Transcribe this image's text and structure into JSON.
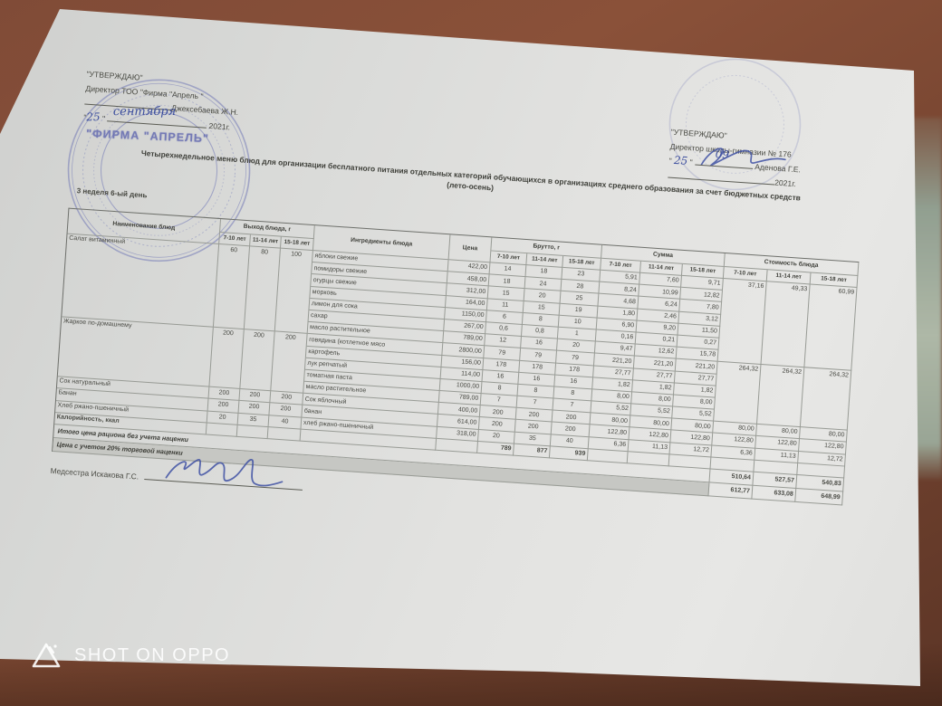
{
  "approvals": {
    "left": {
      "approve": "\"УТВЕРЖДАЮ\"",
      "position": "Директор ТОО \"Фирма \"Апрель \"",
      "name": "Джексебаева Ж.Н.",
      "day": "25",
      "month": "сентября",
      "year": "2021г.",
      "stamp_center_text": "\"ФИРМА \"АПРЕЛЬ\"",
      "stamp_color": "#5d64ae"
    },
    "right": {
      "approve": "\"УТВЕРЖДАЮ\"",
      "position": "Директор школы-гимназии  № 176",
      "name": "Аденова Г.Е.",
      "day": "25",
      "month": "09",
      "year": "2021г.",
      "signature_color": "#3f51a3"
    }
  },
  "title": {
    "line1": "Четырехнедельное меню блюд для организации бесплатного питания отдельных категорий обучающихся в организациях среднего образования за счет бюджетных средств",
    "line2": "(лето-осень)"
  },
  "week_label": "3 неделя 6-ый день",
  "table": {
    "headers": {
      "dish": "Наименование блюд",
      "portion": "Выход блюда, г",
      "ingredients": "Ингредиенты блюда",
      "price": "Цена",
      "brutto": "Брутто, г",
      "summa": "Сумма",
      "cost": "Стоимость блюда",
      "ages": [
        "7-10 лет",
        "11-14 лет",
        "15-18 лет"
      ]
    },
    "dishes": [
      {
        "name": "Салат витаминный",
        "portions": [
          "60",
          "80",
          "100"
        ],
        "cost": [
          "37,16",
          "49,33",
          "60,99"
        ],
        "ingredients": [
          {
            "name": "яблоки свежие",
            "price": "422,00",
            "brutto": [
              "14",
              "18",
              "23"
            ],
            "summa": [
              "5,91",
              "7,60",
              "9,71"
            ]
          },
          {
            "name": "помидоры свежие",
            "price": "458,00",
            "brutto": [
              "18",
              "24",
              "28"
            ],
            "summa": [
              "8,24",
              "10,99",
              "12,82"
            ]
          },
          {
            "name": "огурцы свежие",
            "price": "312,00",
            "brutto": [
              "15",
              "20",
              "25"
            ],
            "summa": [
              "4,68",
              "6,24",
              "7,80"
            ]
          },
          {
            "name": "морковь",
            "price": "164,00",
            "brutto": [
              "11",
              "15",
              "19"
            ],
            "summa": [
              "1,80",
              "2,46",
              "3,12"
            ]
          },
          {
            "name": "лимон для сока",
            "price": "1150,00",
            "brutto": [
              "6",
              "8",
              "10"
            ],
            "summa": [
              "6,90",
              "9,20",
              "11,50"
            ]
          },
          {
            "name": "сахар",
            "price": "267,00",
            "brutto": [
              "0,6",
              "0,8",
              "1"
            ],
            "summa": [
              "0,16",
              "0,21",
              "0,27"
            ]
          },
          {
            "name": "масло растительное",
            "price": "789,00",
            "brutto": [
              "12",
              "16",
              "20"
            ],
            "summa": [
              "9,47",
              "12,62",
              "15,78"
            ]
          }
        ]
      },
      {
        "name": "Жаркое по-домашнему",
        "portions": [
          "200",
          "200",
          "200"
        ],
        "cost": [
          "264,32",
          "264,32",
          "264,32"
        ],
        "ingredients": [
          {
            "name": "говядина (котлетное мясо",
            "price": "2800,00",
            "brutto": [
              "79",
              "79",
              "79"
            ],
            "summa": [
              "221,20",
              "221,20",
              "221,20"
            ]
          },
          {
            "name": "картофель",
            "price": "156,00",
            "brutto": [
              "178",
              "178",
              "178"
            ],
            "summa": [
              "27,77",
              "27,77",
              "27,77"
            ]
          },
          {
            "name": "лук репчатый",
            "price": "114,00",
            "brutto": [
              "16",
              "16",
              "16"
            ],
            "summa": [
              "1,82",
              "1,82",
              "1,82"
            ]
          },
          {
            "name": "томатная паста",
            "price": "1000,00",
            "brutto": [
              "8",
              "8",
              "8"
            ],
            "summa": [
              "8,00",
              "8,00",
              "8,00"
            ]
          },
          {
            "name": "масло растительное",
            "price": "789,00",
            "brutto": [
              "7",
              "7",
              "7"
            ],
            "summa": [
              "5,52",
              "5,52",
              "5,52"
            ]
          }
        ]
      },
      {
        "name": "Сок натуральный",
        "portions": [
          "200",
          "200",
          "200"
        ],
        "cost": [
          "80,00",
          "80,00",
          "80,00"
        ],
        "ingredients": [
          {
            "name": "Сок яблочный",
            "price": "400,00",
            "brutto": [
              "200",
              "200",
              "200"
            ],
            "summa": [
              "80,00",
              "80,00",
              "80,00"
            ]
          }
        ]
      },
      {
        "name": "Банан",
        "portions": [
          "200",
          "200",
          "200"
        ],
        "cost": [
          "122,80",
          "122,80",
          "122,80"
        ],
        "ingredients": [
          {
            "name": "банан",
            "price": "614,00",
            "brutto": [
              "200",
              "200",
              "200"
            ],
            "summa": [
              "122,80",
              "122,80",
              "122,80"
            ]
          }
        ]
      },
      {
        "name": "Хлеб ржано-пшеничный",
        "portions": [
          "20",
          "35",
          "40"
        ],
        "cost": [
          "6,36",
          "11,13",
          "12,72"
        ],
        "ingredients": [
          {
            "name": "хлеб ржано-пшеничный",
            "price": "318,00",
            "brutto": [
              "20",
              "35",
              "40"
            ],
            "summa": [
              "6,36",
              "11,13",
              "12,72"
            ]
          }
        ]
      }
    ],
    "calories_row": {
      "label": "Калорийность, ккал",
      "values": [
        "789",
        "877",
        "939"
      ]
    },
    "totals": [
      {
        "label": "Итого цена рациона без учета наценки",
        "values": [
          "510,64",
          "527,57",
          "540,83"
        ],
        "shaded": false
      },
      {
        "label": "Цена с учетом 20% торговой наценки",
        "values": [
          "612,77",
          "633,08",
          "648,99"
        ],
        "shaded": true
      }
    ]
  },
  "footer": {
    "nurse_label": "Медсестра Искакова Г.С."
  },
  "watermark": {
    "text": "SHOT ON OPPO"
  }
}
